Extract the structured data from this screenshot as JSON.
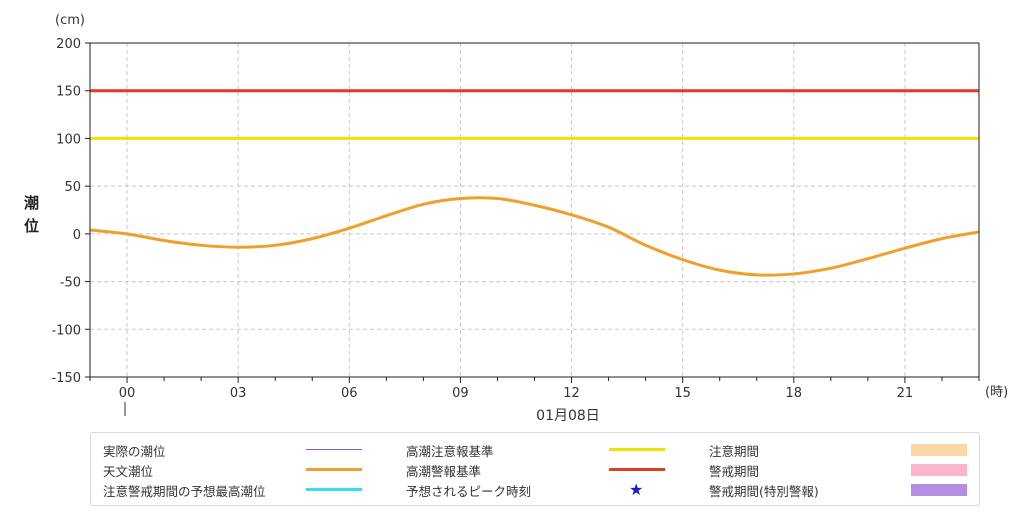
{
  "chart_data": {
    "type": "line",
    "ylabel": "潮位",
    "yunit": "(cm)",
    "xunit": "(時)",
    "date_label": "01月08日",
    "ylim": [
      -150,
      200
    ],
    "yticks": [
      -150,
      -100,
      -50,
      0,
      50,
      100,
      150,
      200
    ],
    "xlim": [
      -1,
      23
    ],
    "xticks": [
      {
        "hour": 0,
        "label": "00"
      },
      {
        "hour": 3,
        "label": "03"
      },
      {
        "hour": 6,
        "label": "06"
      },
      {
        "hour": 9,
        "label": "09"
      },
      {
        "hour": 12,
        "label": "12"
      },
      {
        "hour": 15,
        "label": "15"
      },
      {
        "hour": 18,
        "label": "18"
      },
      {
        "hour": 21,
        "label": "21"
      }
    ],
    "grid": true,
    "series": [
      {
        "name": "天文潮位",
        "color": "#f0a02a",
        "x": [
          -1,
          0,
          1,
          2,
          3,
          4,
          5,
          6,
          7,
          8,
          9,
          10,
          11,
          12,
          13,
          14,
          15,
          16,
          17,
          18,
          19,
          20,
          21,
          22,
          23
        ],
        "y": [
          4,
          0,
          -7,
          -12,
          -14,
          -12,
          -5,
          6,
          19,
          31,
          37,
          37,
          30,
          20,
          7,
          -12,
          -27,
          -38,
          -43,
          -42,
          -36,
          -26,
          -15,
          -5,
          2
        ]
      },
      {
        "name": "高潮注意報基準",
        "color": "#f2e000",
        "x": [
          -1,
          23
        ],
        "y": [
          100,
          100
        ]
      },
      {
        "name": "高潮警報基準",
        "color": "#e03c1f",
        "x": [
          -1,
          23
        ],
        "y": [
          150,
          150
        ]
      }
    ]
  },
  "legend": [
    {
      "label": "実際の潮位",
      "kind": "line",
      "color": "#8a5fc8",
      "thin": true
    },
    {
      "label": "高潮注意報基準",
      "kind": "line",
      "color": "#f2e000"
    },
    {
      "label": "注意期間",
      "kind": "box",
      "color": "#fbd7a8"
    },
    {
      "label": "天文潮位",
      "kind": "line",
      "color": "#f0a02a"
    },
    {
      "label": "高潮警報基準",
      "kind": "line",
      "color": "#e03c1f"
    },
    {
      "label": "警戒期間",
      "kind": "box",
      "color": "#f9b6cb"
    },
    {
      "label": "注意警戒期間の予想最高潮位",
      "kind": "line",
      "color": "#33e0ee"
    },
    {
      "label": "予想されるピーク時刻",
      "kind": "star",
      "color": "#1a1ad0",
      "symbol": "★"
    },
    {
      "label": "警戒期間(特別警報)",
      "kind": "box",
      "color": "#b48ee0"
    }
  ]
}
